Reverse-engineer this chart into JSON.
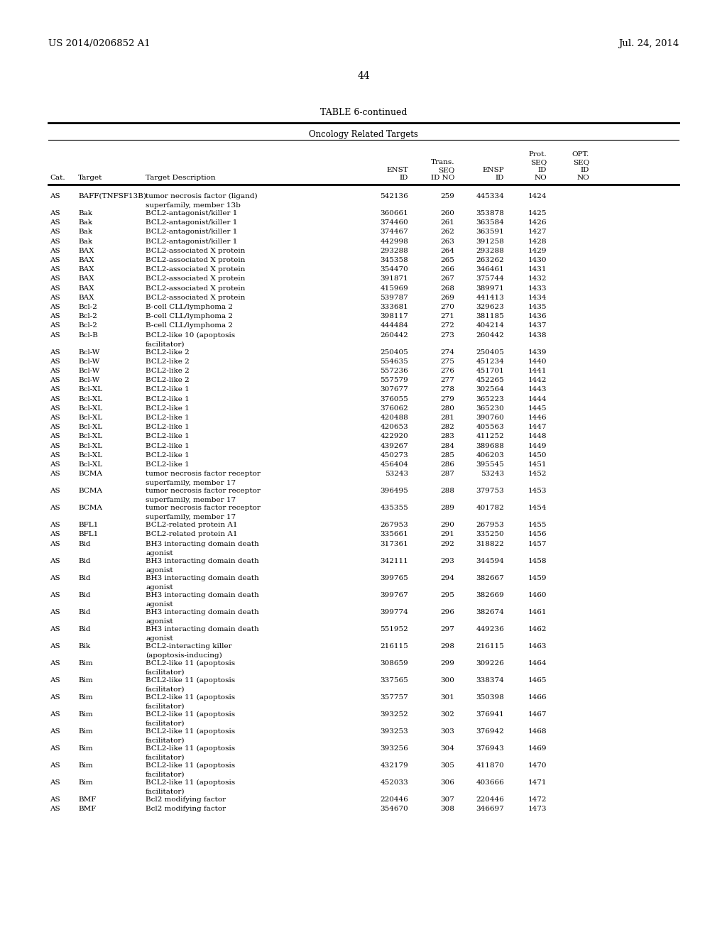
{
  "page_header_left": "US 2014/0206852 A1",
  "page_header_right": "Jul. 24, 2014",
  "page_number": "44",
  "table_title": "TABLE 6-continued",
  "table_subtitle": "Oncology Related Targets",
  "rows": [
    [
      "AS",
      "BAFF(TNFSF13B)",
      "tumor necrosis factor (ligand)\nsuperfamily, member 13b",
      "542136",
      "259",
      "445334",
      "1424",
      ""
    ],
    [
      "AS",
      "Bak",
      "BCL2-antagonist/killer 1",
      "360661",
      "260",
      "353878",
      "1425",
      ""
    ],
    [
      "AS",
      "Bak",
      "BCL2-antagonist/killer 1",
      "374460",
      "261",
      "363584",
      "1426",
      ""
    ],
    [
      "AS",
      "Bak",
      "BCL2-antagonist/killer 1",
      "374467",
      "262",
      "363591",
      "1427",
      ""
    ],
    [
      "AS",
      "Bak",
      "BCL2-antagonist/killer 1",
      "442998",
      "263",
      "391258",
      "1428",
      ""
    ],
    [
      "AS",
      "BAX",
      "BCL2-associated X protein",
      "293288",
      "264",
      "293288",
      "1429",
      ""
    ],
    [
      "AS",
      "BAX",
      "BCL2-associated X protein",
      "345358",
      "265",
      "263262",
      "1430",
      ""
    ],
    [
      "AS",
      "BAX",
      "BCL2-associated X protein",
      "354470",
      "266",
      "346461",
      "1431",
      ""
    ],
    [
      "AS",
      "BAX",
      "BCL2-associated X protein",
      "391871",
      "267",
      "375744",
      "1432",
      ""
    ],
    [
      "AS",
      "BAX",
      "BCL2-associated X protein",
      "415969",
      "268",
      "389971",
      "1433",
      ""
    ],
    [
      "AS",
      "BAX",
      "BCL2-associated X protein",
      "539787",
      "269",
      "441413",
      "1434",
      ""
    ],
    [
      "AS",
      "Bcl-2",
      "B-cell CLL/lymphoma 2",
      "333681",
      "270",
      "329623",
      "1435",
      ""
    ],
    [
      "AS",
      "Bcl-2",
      "B-cell CLL/lymphoma 2",
      "398117",
      "271",
      "381185",
      "1436",
      ""
    ],
    [
      "AS",
      "Bcl-2",
      "B-cell CLL/lymphoma 2",
      "444484",
      "272",
      "404214",
      "1437",
      ""
    ],
    [
      "AS",
      "Bcl-B",
      "BCL2-like 10 (apoptosis\nfacilitator)",
      "260442",
      "273",
      "260442",
      "1438",
      ""
    ],
    [
      "AS",
      "Bcl-W",
      "BCL2-like 2",
      "250405",
      "274",
      "250405",
      "1439",
      ""
    ],
    [
      "AS",
      "Bcl-W",
      "BCL2-like 2",
      "554635",
      "275",
      "451234",
      "1440",
      ""
    ],
    [
      "AS",
      "Bcl-W",
      "BCL2-like 2",
      "557236",
      "276",
      "451701",
      "1441",
      ""
    ],
    [
      "AS",
      "Bcl-W",
      "BCL2-like 2",
      "557579",
      "277",
      "452265",
      "1442",
      ""
    ],
    [
      "AS",
      "Bcl-XL",
      "BCL2-like 1",
      "307677",
      "278",
      "302564",
      "1443",
      ""
    ],
    [
      "AS",
      "Bcl-XL",
      "BCL2-like 1",
      "376055",
      "279",
      "365223",
      "1444",
      ""
    ],
    [
      "AS",
      "Bcl-XL",
      "BCL2-like 1",
      "376062",
      "280",
      "365230",
      "1445",
      ""
    ],
    [
      "AS",
      "Bcl-XL",
      "BCL2-like 1",
      "420488",
      "281",
      "390760",
      "1446",
      ""
    ],
    [
      "AS",
      "Bcl-XL",
      "BCL2-like 1",
      "420653",
      "282",
      "405563",
      "1447",
      ""
    ],
    [
      "AS",
      "Bcl-XL",
      "BCL2-like 1",
      "422920",
      "283",
      "411252",
      "1448",
      ""
    ],
    [
      "AS",
      "Bcl-XL",
      "BCL2-like 1",
      "439267",
      "284",
      "389688",
      "1449",
      ""
    ],
    [
      "AS",
      "Bcl-XL",
      "BCL2-like 1",
      "450273",
      "285",
      "406203",
      "1450",
      ""
    ],
    [
      "AS",
      "Bcl-XL",
      "BCL2-like 1",
      "456404",
      "286",
      "395545",
      "1451",
      ""
    ],
    [
      "AS",
      "BCMA",
      "tumor necrosis factor receptor\nsuperfamily, member 17",
      "53243",
      "287",
      "53243",
      "1452",
      ""
    ],
    [
      "AS",
      "BCMA",
      "tumor necrosis factor receptor\nsuperfamily, member 17",
      "396495",
      "288",
      "379753",
      "1453",
      ""
    ],
    [
      "AS",
      "BCMA",
      "tumor necrosis factor receptor\nsuperfamily, member 17",
      "435355",
      "289",
      "401782",
      "1454",
      ""
    ],
    [
      "AS",
      "BFL1",
      "BCL2-related protein A1",
      "267953",
      "290",
      "267953",
      "1455",
      ""
    ],
    [
      "AS",
      "BFL1",
      "BCL2-related protein A1",
      "335661",
      "291",
      "335250",
      "1456",
      ""
    ],
    [
      "AS",
      "Bid",
      "BH3 interacting domain death\nagonist",
      "317361",
      "292",
      "318822",
      "1457",
      ""
    ],
    [
      "AS",
      "Bid",
      "BH3 interacting domain death\nagonist",
      "342111",
      "293",
      "344594",
      "1458",
      ""
    ],
    [
      "AS",
      "Bid",
      "BH3 interacting domain death\nagonist",
      "399765",
      "294",
      "382667",
      "1459",
      ""
    ],
    [
      "AS",
      "Bid",
      "BH3 interacting domain death\nagonist",
      "399767",
      "295",
      "382669",
      "1460",
      ""
    ],
    [
      "AS",
      "Bid",
      "BH3 interacting domain death\nagonist",
      "399774",
      "296",
      "382674",
      "1461",
      ""
    ],
    [
      "AS",
      "Bid",
      "BH3 interacting domain death\nagonist",
      "551952",
      "297",
      "449236",
      "1462",
      ""
    ],
    [
      "AS",
      "Bik",
      "BCL2-interacting killer\n(apoptosis-inducing)",
      "216115",
      "298",
      "216115",
      "1463",
      ""
    ],
    [
      "AS",
      "Bim",
      "BCL2-like 11 (apoptosis\nfacilitator)",
      "308659",
      "299",
      "309226",
      "1464",
      ""
    ],
    [
      "AS",
      "Bim",
      "BCL2-like 11 (apoptosis\nfacilitator)",
      "337565",
      "300",
      "338374",
      "1465",
      ""
    ],
    [
      "AS",
      "Bim",
      "BCL2-like 11 (apoptosis\nfacilitator)",
      "357757",
      "301",
      "350398",
      "1466",
      ""
    ],
    [
      "AS",
      "Bim",
      "BCL2-like 11 (apoptosis\nfacilitator)",
      "393252",
      "302",
      "376941",
      "1467",
      ""
    ],
    [
      "AS",
      "Bim",
      "BCL2-like 11 (apoptosis\nfacilitator)",
      "393253",
      "303",
      "376942",
      "1468",
      ""
    ],
    [
      "AS",
      "Bim",
      "BCL2-like 11 (apoptosis\nfacilitator)",
      "393256",
      "304",
      "376943",
      "1469",
      ""
    ],
    [
      "AS",
      "Bim",
      "BCL2-like 11 (apoptosis\nfacilitator)",
      "432179",
      "305",
      "411870",
      "1470",
      ""
    ],
    [
      "AS",
      "Bim",
      "BCL2-like 11 (apoptosis\nfacilitator)",
      "452033",
      "306",
      "403666",
      "1471",
      ""
    ],
    [
      "AS",
      "BMF",
      "Bcl2 modifying factor",
      "220446",
      "307",
      "220446",
      "1472",
      ""
    ],
    [
      "AS",
      "BMF",
      "Bcl2 modifying factor",
      "354670",
      "308",
      "346697",
      "1473",
      ""
    ]
  ],
  "background_color": "#ffffff",
  "text_color": "#000000"
}
